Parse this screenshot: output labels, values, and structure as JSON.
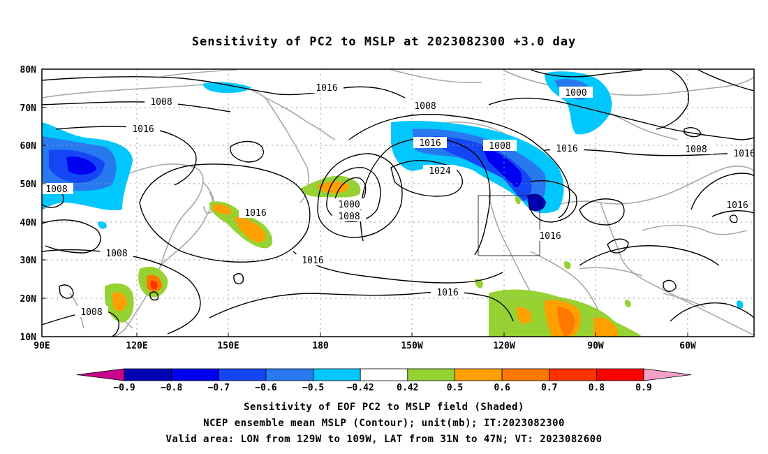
{
  "title": "Sensitivity of PC2 to MSLP at 2023082300 +3.0 day",
  "map": {
    "lat_labels": [
      "80N",
      "70N",
      "60N",
      "50N",
      "40N",
      "30N",
      "20N",
      "10N"
    ],
    "lon_labels": [
      "90E",
      "120E",
      "150E",
      "180",
      "150W",
      "120W",
      "90W",
      "60W"
    ],
    "contour_labels": [
      {
        "text": "1016"
      },
      {
        "text": "1008"
      },
      {
        "text": "1016"
      },
      {
        "text": "1008"
      },
      {
        "text": "1016"
      },
      {
        "text": "1000"
      },
      {
        "text": "1008"
      },
      {
        "text": "1016"
      },
      {
        "text": "1008"
      },
      {
        "text": "1016"
      },
      {
        "text": "1024"
      },
      {
        "text": "1008"
      },
      {
        "text": "1016"
      },
      {
        "text": "1000"
      },
      {
        "text": "1008"
      },
      {
        "text": "1016"
      },
      {
        "text": "1016"
      },
      {
        "text": "1008"
      },
      {
        "text": "1016"
      },
      {
        "text": "1016"
      },
      {
        "text": "1008"
      }
    ],
    "valid_area": {
      "lon": [
        -129,
        -109
      ],
      "lat": [
        31,
        47
      ]
    }
  },
  "colorbar": {
    "labels": [
      "-0.9",
      "-0.8",
      "-0.7",
      "-0.6",
      "-0.5",
      "-0.42",
      "0.42",
      "0.5",
      "0.6",
      "0.7",
      "0.8",
      "0.9"
    ],
    "colors": [
      "#c8048c",
      "#0000b4",
      "#0000f0",
      "#1446f5",
      "#2878f0",
      "#00c8ff",
      "#ffffff",
      "#96d232",
      "#ffa000",
      "#ff7800",
      "#ff3200",
      "#ff0000",
      "#f5a0c8"
    ]
  },
  "footer": {
    "line1": "Sensitivity of EOF PC2 to MSLP field (Shaded)",
    "line2": "NCEP ensemble mean MSLP (Contour); unit(mb); IT:2023082300",
    "line3": "Valid area: LON from 129W to 109W, LAT from 31N to 47N; VT: 2023082600"
  }
}
